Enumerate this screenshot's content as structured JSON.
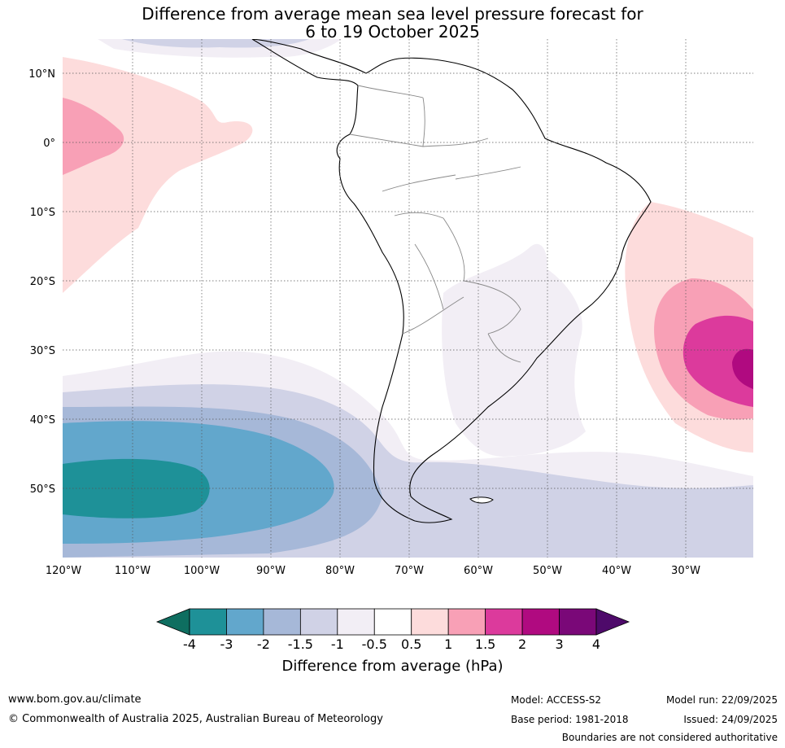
{
  "title_line1": "Difference from average mean sea level pressure forecast for",
  "title_line2": "6 to 19 October 2025",
  "lat_labels": [
    "10°N",
    "0°",
    "10°S",
    "20°S",
    "30°S",
    "40°S",
    "50°S"
  ],
  "lon_labels": [
    "120°W",
    "110°W",
    "100°W",
    "90°W",
    "80°W",
    "70°W",
    "60°W",
    "50°W",
    "40°W",
    "30°W"
  ],
  "colorbar": {
    "title": "Difference from average (hPa)",
    "ticks": [
      "-4",
      "-3",
      "-2",
      "-1.5",
      "-1",
      "-0.5",
      "0.5",
      "1",
      "1.5",
      "2",
      "3",
      "4"
    ],
    "colors": [
      "#0e6e60",
      "#1e9198",
      "#62a7cc",
      "#a6b8d8",
      "#d0d2e6",
      "#f2eef5",
      "#ffffff",
      "#fddcdc",
      "#f8a0b6",
      "#dc3a9c",
      "#b00a80",
      "#7a0878",
      "#4e0a6a"
    ]
  },
  "footer": {
    "url": "www.bom.gov.au/climate",
    "copyright": "© Commonwealth of Australia 2025, Australian Bureau of Meteorology",
    "model": "Model: ACCESS-S2",
    "base_period": "Base period: 1981-2018",
    "model_run": "Model run: 22/09/2025",
    "issued": "Issued: 24/09/2025",
    "disclaimer": "Boundaries are not considered authoritative"
  }
}
